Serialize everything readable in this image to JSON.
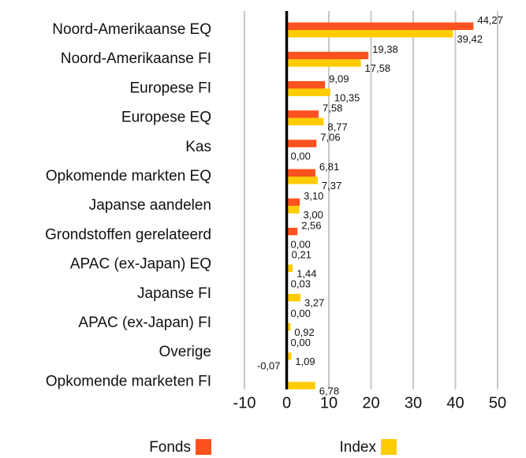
{
  "chart_data": {
    "type": "bar",
    "orientation": "horizontal",
    "categories": [
      "Noord-Amerikaanse EQ",
      "Noord-Amerikaanse FI",
      "Europese FI",
      "Europese EQ",
      "Kas",
      "Opkomende markten EQ",
      "Japanse aandelen",
      "Grondstoffen gerelateerd",
      "APAC (ex-Japan) EQ",
      "Japanse FI",
      "APAC (ex-Japan) FI",
      "Overige",
      "Opkomende marketen FI"
    ],
    "series": [
      {
        "name": "Fonds",
        "color": "#fc5220",
        "values": [
          44.27,
          19.38,
          9.09,
          7.58,
          7.06,
          6.81,
          3.1,
          2.56,
          0.21,
          0.03,
          0.0,
          0.0,
          -0.07
        ],
        "value_labels": [
          "44,27",
          "19,38",
          "9,09",
          "7,58",
          "7,06",
          "6,81",
          "3,10",
          "2,56",
          "0,21",
          "0,03",
          "0,00",
          "0,00",
          "-0,07"
        ]
      },
      {
        "name": "Index",
        "color": "#ffcc00",
        "values": [
          39.42,
          17.58,
          10.35,
          8.77,
          0.0,
          7.37,
          3.0,
          0.0,
          1.44,
          3.27,
          0.92,
          1.09,
          6.78
        ],
        "value_labels": [
          "39,42",
          "17,58",
          "10,35",
          "8,77",
          "0,00",
          "7,37",
          "3,00",
          "0,00",
          "1,44",
          "3,27",
          "0,92",
          "1,09",
          "6,78"
        ]
      }
    ],
    "xlim": [
      -10,
      50
    ],
    "xticks": [
      -10,
      0,
      10,
      20,
      30,
      40,
      50
    ],
    "grid": true
  }
}
